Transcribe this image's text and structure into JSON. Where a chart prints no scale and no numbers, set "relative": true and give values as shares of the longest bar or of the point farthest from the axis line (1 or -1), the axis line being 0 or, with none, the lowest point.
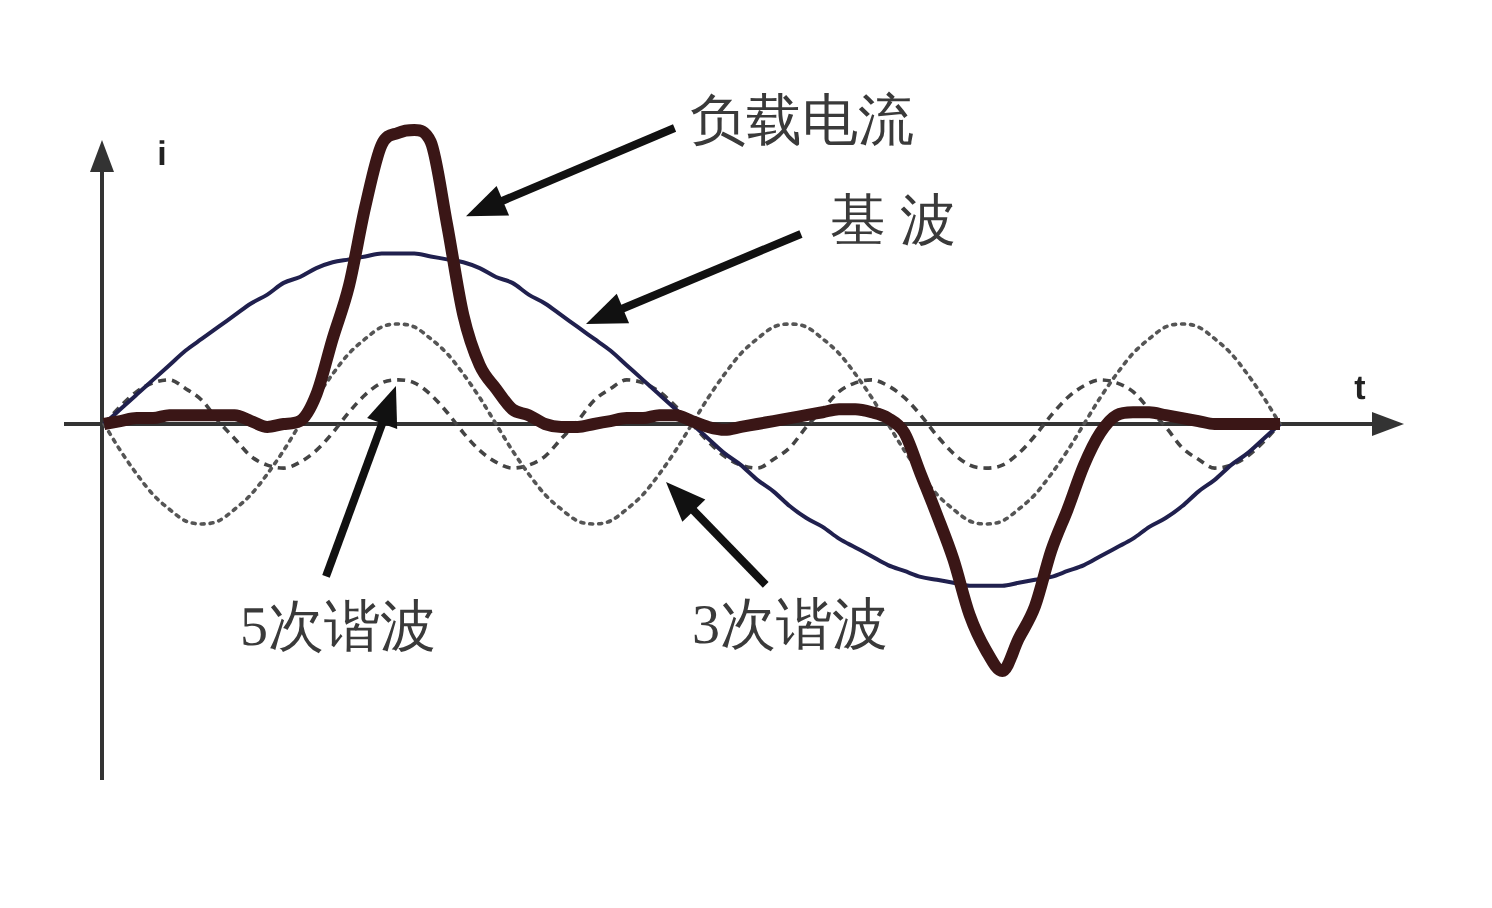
{
  "chart_data": {
    "type": "line",
    "xlabel": "t",
    "ylabel": "i",
    "relative": true,
    "legend": false,
    "tick_labels": false,
    "marker": "none",
    "categories": [
      null,
      null,
      null,
      null,
      null,
      null,
      null,
      null,
      null,
      null,
      null,
      null,
      null,
      null,
      null,
      null,
      null,
      null,
      null,
      null,
      null,
      null,
      null,
      null,
      null,
      null,
      null,
      null,
      null,
      null,
      null,
      null,
      null,
      null,
      null,
      null,
      null,
      null,
      null,
      null,
      null,
      null,
      null,
      null,
      null,
      null,
      null,
      null,
      null,
      null,
      null,
      null,
      null,
      null,
      null,
      null,
      null,
      null,
      null,
      null,
      null,
      null,
      null,
      null,
      null,
      null,
      null,
      null,
      null,
      null,
      null,
      null,
      null
    ],
    "series": [
      {
        "name": "负载电流",
        "color": "#3a1616",
        "line_style": "solid",
        "values": [
          0,
          0.01,
          0.02,
          0.02,
          0.03,
          0.03,
          0.03,
          0.03,
          0.03,
          0.01,
          -0.01,
          0,
          0.01,
          0.1,
          0.29,
          0.47,
          0.74,
          0.95,
          0.99,
          1,
          0.96,
          0.68,
          0.37,
          0.2,
          0.12,
          0.05,
          0.03,
          0,
          -0.01,
          -0.01,
          0,
          0.01,
          0.02,
          0.02,
          0.03,
          0.03,
          0.01,
          -0.01,
          -0.02,
          -0.01,
          0,
          0.01,
          0.02,
          0.03,
          0.04,
          0.05,
          0.05,
          0.04,
          0.02,
          -0.03,
          -0.17,
          -0.31,
          -0.46,
          -0.65,
          -0.77,
          -0.84,
          -0.73,
          -0.62,
          -0.43,
          -0.29,
          -0.14,
          -0.03,
          0.03,
          0.04,
          0.04,
          0.03,
          0.02,
          0.01,
          0,
          0,
          0,
          0,
          0
        ]
      },
      {
        "name": "基 波",
        "color": "#20204e",
        "line_style": "solid",
        "values": [
          0,
          0.05,
          0.1,
          0.15,
          0.2,
          0.25,
          0.29,
          0.33,
          0.37,
          0.41,
          0.44,
          0.48,
          0.5,
          0.53,
          0.55,
          0.56,
          0.57,
          0.58,
          0.58,
          0.58,
          0.57,
          0.56,
          0.55,
          0.53,
          0.5,
          0.48,
          0.44,
          0.41,
          0.37,
          0.33,
          0.29,
          0.25,
          0.2,
          0.15,
          0.1,
          0.05,
          0,
          -0.05,
          -0.1,
          -0.14,
          -0.19,
          -0.23,
          -0.28,
          -0.32,
          -0.35,
          -0.39,
          -0.42,
          -0.45,
          -0.48,
          -0.5,
          -0.52,
          -0.53,
          -0.54,
          -0.55,
          -0.55,
          -0.55,
          -0.54,
          -0.53,
          -0.52,
          -0.5,
          -0.48,
          -0.45,
          -0.42,
          -0.39,
          -0.35,
          -0.32,
          -0.28,
          -0.23,
          -0.19,
          -0.14,
          -0.1,
          -0.05,
          0
        ]
      },
      {
        "name": "3次谐波",
        "color": "#555555",
        "line_style": "dotted",
        "values": [
          0,
          -0.09,
          -0.17,
          -0.24,
          -0.29,
          -0.33,
          -0.34,
          -0.33,
          -0.29,
          -0.24,
          -0.17,
          -0.09,
          0,
          0.09,
          0.17,
          0.24,
          0.29,
          0.33,
          0.34,
          0.33,
          0.29,
          0.24,
          0.17,
          0.09,
          0,
          -0.09,
          -0.17,
          -0.24,
          -0.29,
          -0.33,
          -0.34,
          -0.33,
          -0.29,
          -0.24,
          -0.17,
          -0.09,
          0,
          0.09,
          0.17,
          0.24,
          0.29,
          0.33,
          0.34,
          0.33,
          0.29,
          0.24,
          0.17,
          0.09,
          0,
          -0.09,
          -0.17,
          -0.24,
          -0.29,
          -0.33,
          -0.34,
          -0.33,
          -0.29,
          -0.24,
          -0.17,
          -0.09,
          0,
          0.09,
          0.17,
          0.24,
          0.29,
          0.33,
          0.34,
          0.33,
          0.29,
          0.24,
          0.17,
          0.09,
          0
        ]
      },
      {
        "name": "5次谐波",
        "color": "#444444",
        "line_style": "dashed",
        "values": [
          0,
          0.06,
          0.11,
          0.14,
          0.15,
          0.12,
          0.08,
          0.01,
          -0.05,
          -0.11,
          -0.14,
          -0.15,
          -0.13,
          -0.09,
          -0.03,
          0.04,
          0.1,
          0.14,
          0.15,
          0.14,
          0.1,
          0.04,
          -0.03,
          -0.09,
          -0.13,
          -0.15,
          -0.14,
          -0.11,
          -0.05,
          0.01,
          0.08,
          0.12,
          0.15,
          0.14,
          0.11,
          0.06,
          0,
          -0.06,
          -0.11,
          -0.14,
          -0.15,
          -0.12,
          -0.08,
          -0.01,
          0.05,
          0.11,
          0.14,
          0.15,
          0.13,
          0.09,
          0.03,
          -0.04,
          -0.1,
          -0.14,
          -0.15,
          -0.14,
          -0.1,
          -0.04,
          0.03,
          0.09,
          0.13,
          0.15,
          0.14,
          0.11,
          0.05,
          -0.01,
          -0.08,
          -0.12,
          -0.15,
          -0.14,
          -0.11,
          -0.06,
          0
        ]
      }
    ]
  }
}
